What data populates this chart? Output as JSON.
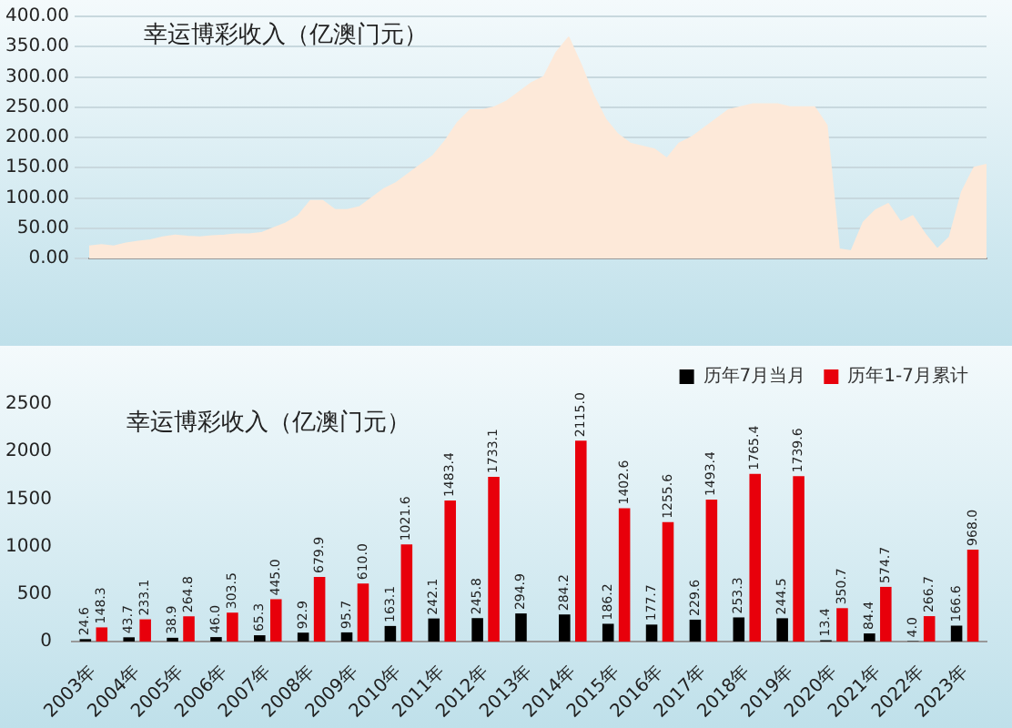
{
  "chart_data": [
    {
      "type": "area",
      "title": "幸运博彩收入（亿澳门元）",
      "categories": [
        null,
        null,
        null,
        null,
        null,
        null,
        null,
        null,
        null,
        null,
        null,
        null,
        null,
        null,
        null,
        null,
        null,
        null,
        null,
        null,
        null,
        null,
        null,
        null,
        null,
        null,
        null,
        null,
        null,
        null,
        null,
        null,
        null,
        null,
        null,
        null,
        null,
        null,
        null,
        null,
        null,
        null,
        null,
        null,
        null,
        null,
        null,
        null,
        null,
        null,
        null,
        null,
        null,
        null,
        null,
        null,
        null,
        null,
        null,
        null,
        null,
        null,
        null,
        null,
        null,
        null,
        null,
        null,
        null,
        null,
        null,
        null,
        null,
        null
      ],
      "values": [
        20,
        22,
        20,
        25,
        28,
        30,
        35,
        38,
        36,
        35,
        37,
        38,
        40,
        40,
        42,
        50,
        58,
        70,
        95,
        95,
        80,
        80,
        85,
        100,
        115,
        125,
        140,
        155,
        170,
        195,
        225,
        245,
        245,
        250,
        260,
        275,
        290,
        300,
        340,
        365,
        320,
        270,
        230,
        205,
        190,
        185,
        180,
        165,
        190,
        200,
        215,
        230,
        245,
        250,
        255,
        255,
        255,
        250,
        250,
        250,
        220,
        15,
        12,
        60,
        80,
        90,
        60,
        70,
        40,
        15,
        35,
        110,
        150,
        155
      ],
      "color": "#fde9d9",
      "ylim": [
        0,
        400
      ],
      "yticks": [
        {
          "value": 0,
          "label": "0.00"
        },
        {
          "value": 50,
          "label": "50.00"
        },
        {
          "value": 100,
          "label": "100.00"
        },
        {
          "value": 150,
          "label": "150.00"
        },
        {
          "value": 200,
          "label": "200.00"
        },
        {
          "value": 250,
          "label": "250.00"
        },
        {
          "value": 300,
          "label": "300.00"
        },
        {
          "value": 350,
          "label": "350.00"
        },
        {
          "value": 400,
          "label": "400.00"
        }
      ],
      "grid": "y",
      "tick_labels": "y"
    },
    {
      "type": "bar",
      "title": "幸运博彩收入（亿澳门元）",
      "categories": [
        "2003年",
        "2004年",
        "2005年",
        "2006年",
        "2007年",
        "2008年",
        "2009年",
        "2010年",
        "2011年",
        "2012年",
        "2013年",
        "2014年",
        "2015年",
        "2016年",
        "2017年",
        "2018年",
        "2019年",
        "2020年",
        "2021年",
        "2022年",
        "2023年"
      ],
      "series": [
        {
          "name": "历年7月当月",
          "color": "#000000",
          "values": [
            24.6,
            43.7,
            38.9,
            46.0,
            65.3,
            92.9,
            95.7,
            163.1,
            242.1,
            245.8,
            294.9,
            284.2,
            186.2,
            177.7,
            229.6,
            253.3,
            244.5,
            13.4,
            84.4,
            4.0,
            166.6
          ],
          "value_labels": [
            "24.6",
            "43.7",
            "38.9",
            "46.0",
            "65.3",
            "92.9",
            "95.7",
            "163.1",
            "242.1",
            "245.8",
            "294.9",
            "284.2",
            "186.2",
            "177.7",
            "229.6",
            "253.3",
            "244.5",
            "13.4",
            "84.4",
            "4.0",
            "166.6"
          ]
        },
        {
          "name": "历年1-7月累计",
          "color": "#e8000b",
          "values": [
            148.3,
            233.1,
            264.8,
            303.5,
            445.0,
            679.9,
            610.0,
            1021.6,
            1483.4,
            1733.1,
            null,
            2115.0,
            1402.6,
            1255.6,
            1493.4,
            1765.4,
            1739.6,
            350.7,
            574.7,
            266.7,
            968.0
          ],
          "value_labels": [
            "148.3",
            "233.1",
            "264.8",
            "303.5",
            "445.0",
            "679.9",
            "610.0",
            "1021.6",
            "1483.4",
            "1733.1",
            null,
            "2115.0",
            "1402.6",
            "1255.6",
            "1493.4",
            "1765.4",
            "1739.6",
            "350.7",
            "574.7",
            "266.7",
            "968.0"
          ]
        }
      ],
      "ylim": [
        0,
        2500
      ],
      "yticks": [
        0,
        500,
        1000,
        1500,
        2000,
        2500
      ],
      "legend": "top right"
    }
  ]
}
